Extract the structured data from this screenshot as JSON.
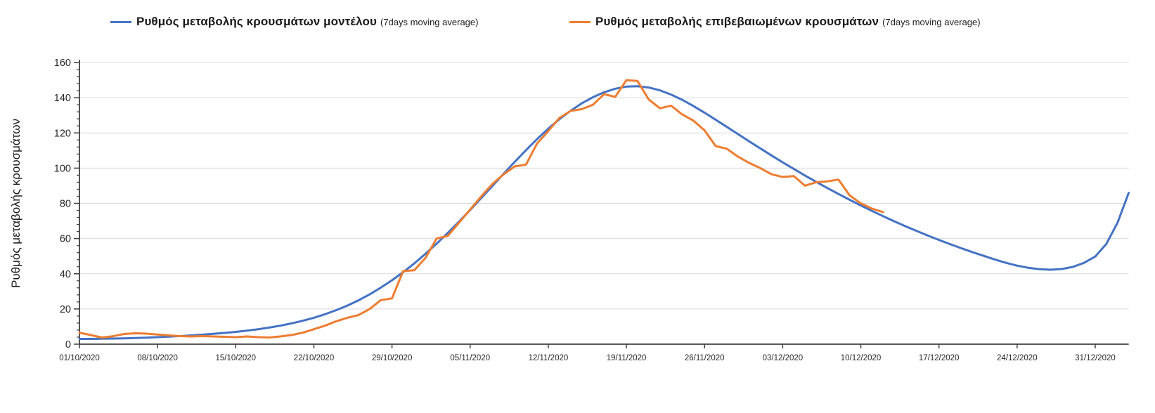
{
  "chart_data": {
    "type": "line",
    "title": "",
    "ylabel": "Ρυθμός μεταβολής κρουσμάτων",
    "xlabel": "",
    "ylim": [
      0,
      160
    ],
    "ytick_step": 20,
    "y_minor_tick_step": 4,
    "grid": "horizontal-only",
    "legend_position": "top",
    "x_start_date": "01/10/2020",
    "x_days_shown": 94,
    "x_tick_every_days": 7,
    "x_tick_labels": [
      "01/10/2020",
      "08/10/2020",
      "15/10/2020",
      "22/10/2020",
      "29/10/2020",
      "05/11/2020",
      "12/11/2020",
      "19/11/2020",
      "26/11/2020",
      "03/12/2020",
      "10/12/2020",
      "17/12/2020",
      "24/12/2020",
      "31/12/2020"
    ],
    "series": [
      {
        "name": "Ρυθμός μεταβολής κρουσμάτων μοντέλου",
        "sublabel": "(7days moving average)",
        "color": "#4472C4",
        "start_day": 0,
        "values": [
          3.0,
          3.0,
          3.1,
          3.2,
          3.3,
          3.5,
          3.7,
          4.0,
          4.3,
          4.6,
          5.0,
          5.4,
          5.9,
          6.4,
          7.0,
          7.7,
          8.5,
          9.4,
          10.5,
          11.8,
          13.3,
          15.0,
          17.0,
          19.3,
          21.9,
          24.9,
          28.3,
          32.1,
          36.3,
          40.9,
          45.9,
          51.3,
          57.1,
          63.2,
          69.6,
          76.2,
          83.0,
          89.9,
          96.8,
          103.6,
          110.2,
          116.5,
          122.4,
          127.8,
          132.6,
          136.8,
          140.3,
          143.1,
          145.1,
          146.3,
          146.5,
          145.8,
          144.2,
          141.8,
          138.8,
          135.3,
          131.5,
          127.5,
          123.4,
          119.3,
          115.2,
          111.2,
          107.2,
          103.3,
          99.5,
          95.8,
          92.2,
          88.7,
          85.3,
          82.0,
          78.8,
          75.7,
          72.7,
          69.8,
          67.0,
          64.3,
          61.7,
          59.2,
          56.8,
          54.5,
          52.3,
          50.2,
          48.1,
          46.2,
          44.6,
          43.4,
          42.6,
          42.3,
          42.7,
          43.9,
          46.2,
          49.8,
          57.0,
          69.0,
          86.0
        ]
      },
      {
        "name": "Ρυθμός μεταβολής επιβεβαιωμένων κρουσμάτων",
        "sublabel": "(7days moving average)",
        "color": "#ED7D31",
        "start_day": 0,
        "values": [
          6.5,
          5.2,
          3.8,
          4.5,
          5.8,
          6.2,
          6.0,
          5.5,
          5.0,
          4.6,
          4.4,
          4.6,
          4.4,
          4.2,
          4.0,
          4.4,
          4.0,
          3.8,
          4.4,
          5.2,
          6.5,
          8.5,
          10.5,
          13.0,
          15.0,
          16.5,
          20.0,
          25.0,
          26.0,
          41.5,
          42.0,
          49.0,
          60.0,
          61.5,
          69.0,
          76.5,
          84.0,
          91.0,
          96.5,
          101.0,
          102.0,
          114.0,
          121.0,
          128.5,
          132.5,
          133.5,
          136.0,
          142.0,
          140.5,
          150.0,
          149.5,
          139.0,
          134.0,
          135.5,
          130.5,
          127.0,
          121.5,
          112.5,
          111.0,
          106.5,
          103.0,
          100.0,
          96.5,
          95.0,
          95.5,
          90.0,
          92.0,
          92.5,
          93.5,
          84.5,
          80.0,
          77.0,
          75.0
        ]
      }
    ],
    "axis": {
      "line_color": "#404040",
      "grid_color": "#d9d9d9",
      "tick_label_color": "#262626",
      "y_tick_font_px": 14.5,
      "x_tick_font_px": 11.5
    }
  }
}
